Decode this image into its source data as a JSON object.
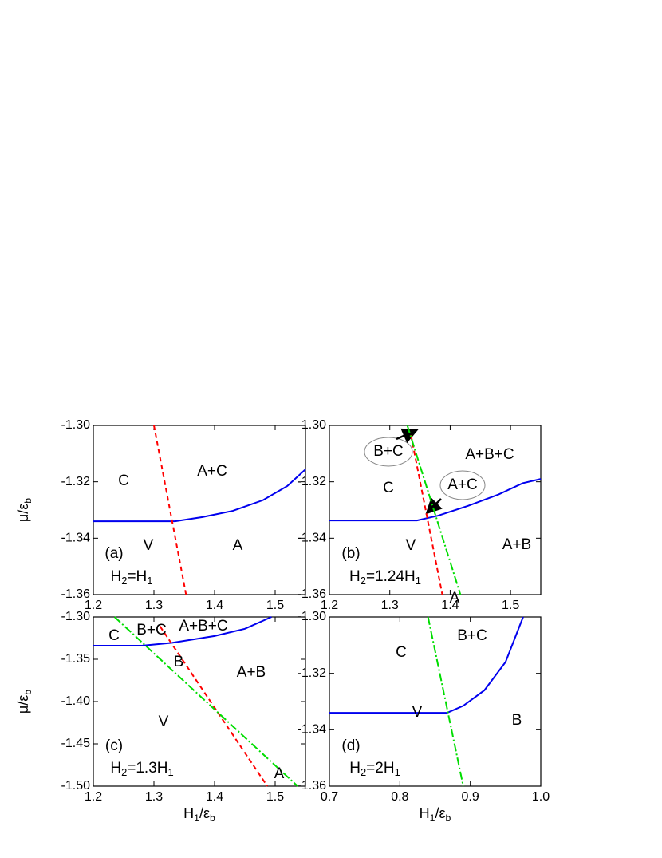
{
  "chart_data": [
    {
      "type": "line",
      "xlim": [
        1.2,
        1.55
      ],
      "ylim": [
        -1.36,
        -1.3
      ],
      "xticks": [
        1.2,
        1.3,
        1.4,
        1.5
      ],
      "yticks": [
        {
          "value": -1.3,
          "label": "-1.30"
        },
        {
          "value": -1.32,
          "label": "-1.32"
        },
        {
          "value": -1.34,
          "label": "-1.34"
        },
        {
          "value": -1.36,
          "label": "-1.36"
        }
      ],
      "ylabel": [
        "μ/ε",
        "b"
      ],
      "series": [
        {
          "color": "#0000ee",
          "dash": "solid",
          "x": [
            1.2,
            1.335,
            1.38,
            1.43,
            1.48,
            1.52,
            1.55
          ],
          "values": [
            -1.334,
            -1.334,
            -1.3325,
            -1.3303,
            -1.3265,
            -1.3215,
            -1.3156
          ]
        },
        {
          "color": "#ff0000",
          "dash": "dashed",
          "x": [
            1.3,
            1.353
          ],
          "values": [
            -1.3,
            -1.36
          ]
        }
      ],
      "annotations": [
        "C",
        "A+C",
        "V",
        "A",
        "(a)",
        [
          "H",
          "2",
          "=H",
          "1"
        ]
      ]
    },
    {
      "type": "line",
      "xlim": [
        1.2,
        1.55
      ],
      "ylim": [
        -1.36,
        -1.3
      ],
      "xticks": [
        1.2,
        1.3,
        1.4,
        1.5
      ],
      "yticks": [
        {
          "value": -1.3,
          "label": "-1.30"
        },
        {
          "value": -1.32,
          "label": "-1.32"
        },
        {
          "value": -1.34,
          "label": "-1.34"
        },
        {
          "value": -1.36,
          "label": "-1.36"
        }
      ],
      "series": [
        {
          "color": "#0000ee",
          "dash": "solid",
          "x": [
            1.2,
            1.345,
            1.38,
            1.43,
            1.48,
            1.52,
            1.55
          ],
          "values": [
            -1.3337,
            -1.3337,
            -1.332,
            -1.3285,
            -1.3245,
            -1.3205,
            -1.319
          ]
        },
        {
          "color": "#ff0000",
          "dash": "dashed",
          "x": [
            1.335,
            1.387
          ],
          "values": [
            -1.3034,
            -1.36
          ]
        },
        {
          "color": "#00dd00",
          "dash": "dashdot",
          "x": [
            1.329,
            1.417
          ],
          "values": [
            -1.3,
            -1.36
          ]
        }
      ],
      "annotations": [
        "B+C",
        "A+B+C",
        "C",
        "A+C",
        "V",
        "A+B",
        "(b)",
        [
          "H",
          "2",
          "=1.24H",
          "1"
        ],
        "A"
      ]
    },
    {
      "type": "line",
      "xlim": [
        1.2,
        1.55
      ],
      "ylim": [
        -1.5,
        -1.3
      ],
      "xticks": [
        1.2,
        1.3,
        1.4,
        1.5
      ],
      "yticks": [
        {
          "value": -1.3,
          "label": "-1.30"
        },
        {
          "value": -1.35,
          "label": "-1.35"
        },
        {
          "value": -1.4,
          "label": "-1.40"
        },
        {
          "value": -1.45,
          "label": "-1.45"
        },
        {
          "value": -1.5,
          "label": "-1.50"
        }
      ],
      "xlabel": [
        "H",
        "1",
        "/ε",
        "b"
      ],
      "ylabel": [
        "μ/ε",
        "b"
      ],
      "series": [
        {
          "color": "#0000ee",
          "dash": "solid",
          "x": [
            1.2,
            1.28,
            1.33,
            1.4,
            1.45,
            1.494
          ],
          "values": [
            -1.334,
            -1.334,
            -1.3305,
            -1.3225,
            -1.314,
            -1.3
          ]
        },
        {
          "color": "#ff0000",
          "dash": "dashed",
          "x": [
            1.31,
            1.487
          ],
          "values": [
            -1.311,
            -1.5
          ]
        },
        {
          "color": "#00dd00",
          "dash": "dashdot",
          "x": [
            1.235,
            1.537
          ],
          "values": [
            -1.3,
            -1.5
          ]
        }
      ],
      "annotations": [
        "C",
        "B+C",
        "A+B+C",
        "B",
        "A+B",
        "V",
        "(c)",
        [
          "H",
          "2",
          "=1.3H",
          "1"
        ],
        "A"
      ]
    },
    {
      "type": "line",
      "xlim": [
        0.7,
        1.0
      ],
      "ylim": [
        -1.36,
        -1.3
      ],
      "xticks": [
        0.7,
        0.8,
        0.9,
        {
          "value": 1.0,
          "label": "1.0"
        }
      ],
      "yticks": [
        {
          "value": -1.3,
          "label": "-1.30"
        },
        {
          "value": -1.32,
          "label": "-1.32"
        },
        {
          "value": -1.34,
          "label": "-1.34"
        },
        {
          "value": -1.36,
          "label": "-1.36"
        }
      ],
      "xlabel": [
        "H",
        "1",
        "/ε",
        "b"
      ],
      "series": [
        {
          "color": "#0000ee",
          "dash": "solid",
          "x": [
            0.7,
            0.867,
            0.89,
            0.92,
            0.95,
            0.975
          ],
          "values": [
            -1.334,
            -1.334,
            -1.3315,
            -1.326,
            -1.316,
            -1.3
          ]
        },
        {
          "color": "#00dd00",
          "dash": "dashdot",
          "x": [
            0.84,
            0.89
          ],
          "values": [
            -1.3,
            -1.36
          ]
        }
      ],
      "annotations": [
        "C",
        "B+C",
        "V",
        "B",
        "(d)",
        [
          "H",
          "2",
          "=2H",
          "1"
        ]
      ]
    }
  ]
}
